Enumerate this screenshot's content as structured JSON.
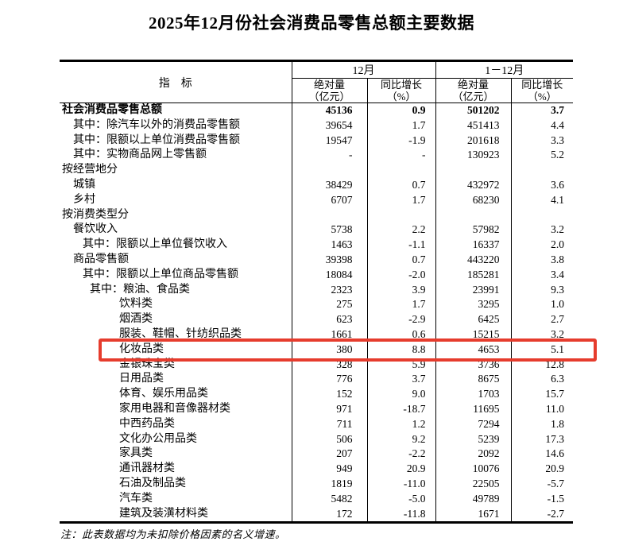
{
  "title": "2025年12月份社会消费品零售总额主要数据",
  "note": "注：此表数据均为未扣除价格因素的名义增速。",
  "colors": {
    "highlight_border": "#e63c2d",
    "table_border": "#000000"
  },
  "table": {
    "indicator_header": "指　标",
    "groups": [
      {
        "label": "12月"
      },
      {
        "label": "1－12月"
      }
    ],
    "subcols": [
      {
        "line1": "绝对量",
        "line2": "（亿元）"
      },
      {
        "line1": "同比增长",
        "line2": "（%）"
      }
    ],
    "rows": [
      {
        "label": "社会消费品零售总额",
        "indent": 0,
        "bold": true,
        "highlight": false,
        "values": [
          "45136",
          "0.9",
          "501202",
          "3.7"
        ]
      },
      {
        "label": "其中：除汽车以外的消费品零售额",
        "indent": 1,
        "bold": false,
        "highlight": false,
        "values": [
          "39654",
          "1.7",
          "451413",
          "4.4"
        ]
      },
      {
        "label": "其中：限额以上单位消费品零售额",
        "indent": 1,
        "bold": false,
        "highlight": false,
        "values": [
          "19547",
          "-1.9",
          "201618",
          "3.3"
        ]
      },
      {
        "label": "其中：实物商品网上零售额",
        "indent": 1,
        "bold": false,
        "highlight": false,
        "values": [
          "-",
          "-",
          "130923",
          "5.2"
        ]
      },
      {
        "label": "按经营地分",
        "indent": 0,
        "bold": false,
        "highlight": false,
        "values": [
          "",
          "",
          "",
          ""
        ]
      },
      {
        "label": "城镇",
        "indent": 1,
        "bold": false,
        "highlight": false,
        "values": [
          "38429",
          "0.7",
          "432972",
          "3.6"
        ]
      },
      {
        "label": "乡村",
        "indent": 1,
        "bold": false,
        "highlight": false,
        "values": [
          "6707",
          "1.7",
          "68230",
          "4.1"
        ]
      },
      {
        "label": "按消费类型分",
        "indent": 0,
        "bold": false,
        "highlight": false,
        "values": [
          "",
          "",
          "",
          ""
        ]
      },
      {
        "label": "餐饮收入",
        "indent": 1,
        "bold": false,
        "highlight": false,
        "values": [
          "5738",
          "2.2",
          "57982",
          "3.2"
        ]
      },
      {
        "label": "其中：限额以上单位餐饮收入",
        "indent": 2,
        "bold": false,
        "highlight": false,
        "values": [
          "1463",
          "-1.1",
          "16337",
          "2.0"
        ]
      },
      {
        "label": "商品零售额",
        "indent": 1,
        "bold": false,
        "highlight": false,
        "values": [
          "39398",
          "0.7",
          "443220",
          "3.8"
        ]
      },
      {
        "label": "其中：限额以上单位商品零售额",
        "indent": 2,
        "bold": false,
        "highlight": false,
        "values": [
          "18084",
          "-2.0",
          "185281",
          "3.4"
        ]
      },
      {
        "label": "其中：粮油、食品类",
        "indent": 3,
        "bold": false,
        "highlight": false,
        "values": [
          "2323",
          "3.9",
          "23991",
          "9.3"
        ]
      },
      {
        "label": "饮料类",
        "indent": 4,
        "bold": false,
        "highlight": false,
        "values": [
          "275",
          "1.7",
          "3295",
          "1.0"
        ]
      },
      {
        "label": "烟酒类",
        "indent": 4,
        "bold": false,
        "highlight": false,
        "values": [
          "623",
          "-2.9",
          "6425",
          "2.7"
        ]
      },
      {
        "label": "服装、鞋帽、针纺织品类",
        "indent": 4,
        "bold": false,
        "highlight": false,
        "values": [
          "1661",
          "0.6",
          "15215",
          "3.2"
        ]
      },
      {
        "label": "化妆品类",
        "indent": 4,
        "bold": false,
        "highlight": true,
        "values": [
          "380",
          "8.8",
          "4653",
          "5.1"
        ]
      },
      {
        "label": "金银珠宝类",
        "indent": 4,
        "bold": false,
        "highlight": false,
        "values": [
          "328",
          "5.9",
          "3736",
          "12.8"
        ]
      },
      {
        "label": "日用品类",
        "indent": 4,
        "bold": false,
        "highlight": false,
        "values": [
          "776",
          "3.7",
          "8675",
          "6.3"
        ]
      },
      {
        "label": "体育、娱乐用品类",
        "indent": 4,
        "bold": false,
        "highlight": false,
        "values": [
          "152",
          "9.0",
          "1703",
          "15.7"
        ]
      },
      {
        "label": "家用电器和音像器材类",
        "indent": 4,
        "bold": false,
        "highlight": false,
        "values": [
          "971",
          "-18.7",
          "11695",
          "11.0"
        ]
      },
      {
        "label": "中西药品类",
        "indent": 4,
        "bold": false,
        "highlight": false,
        "values": [
          "711",
          "1.2",
          "7294",
          "1.8"
        ]
      },
      {
        "label": "文化办公用品类",
        "indent": 4,
        "bold": false,
        "highlight": false,
        "values": [
          "506",
          "9.2",
          "5239",
          "17.3"
        ]
      },
      {
        "label": "家具类",
        "indent": 4,
        "bold": false,
        "highlight": false,
        "values": [
          "207",
          "-2.2",
          "2092",
          "14.6"
        ]
      },
      {
        "label": "通讯器材类",
        "indent": 4,
        "bold": false,
        "highlight": false,
        "values": [
          "949",
          "20.9",
          "10076",
          "20.9"
        ]
      },
      {
        "label": "石油及制品类",
        "indent": 4,
        "bold": false,
        "highlight": false,
        "values": [
          "1819",
          "-11.0",
          "22505",
          "-5.7"
        ]
      },
      {
        "label": "汽车类",
        "indent": 4,
        "bold": false,
        "highlight": false,
        "values": [
          "5482",
          "-5.0",
          "49789",
          "-1.5"
        ]
      },
      {
        "label": "建筑及装潢材料类",
        "indent": 4,
        "bold": false,
        "highlight": false,
        "values": [
          "172",
          "-11.8",
          "1671",
          "-2.7"
        ]
      }
    ]
  }
}
